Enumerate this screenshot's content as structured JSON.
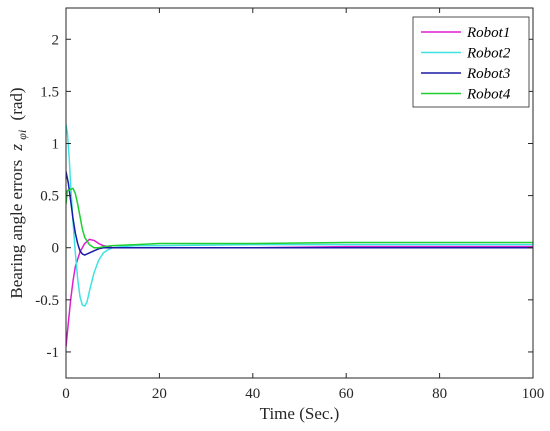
{
  "chart_data": {
    "type": "line",
    "xlabel": "Time (Sec.)",
    "ylabel": "Bearing angle errors",
    "ylabel_symbol": "z",
    "ylabel_subscript": "φi",
    "ylabel_unit": "(rad)",
    "xlim": [
      0,
      100
    ],
    "ylim": [
      -1.25,
      2.3
    ],
    "x_ticks": [
      0,
      20,
      40,
      60,
      80,
      100
    ],
    "x_tick_labels": [
      "0",
      "20",
      "40",
      "60",
      "80",
      "100"
    ],
    "y_ticks": [
      -1,
      -0.5,
      0,
      0.5,
      1,
      1.5,
      2
    ],
    "y_tick_labels": [
      "-1",
      "-0.5",
      "0",
      "0.5",
      "1",
      "1.5",
      "2"
    ],
    "grid": false,
    "legend_position": "top-right",
    "series": [
      {
        "name": "Robot1",
        "color": "#e01fd0",
        "x": [
          0,
          0.5,
          1,
          1.5,
          2,
          3,
          4,
          5,
          6,
          7,
          8,
          10,
          15,
          20,
          40,
          60,
          80,
          100
        ],
        "y": [
          -0.95,
          -0.72,
          -0.5,
          -0.32,
          -0.18,
          -0.04,
          0.04,
          0.08,
          0.07,
          0.04,
          0.02,
          0.0,
          0.0,
          0.0,
          0.0,
          0.01,
          0.01,
          0.01
        ]
      },
      {
        "name": "Robot2",
        "color": "#3fe3e3",
        "x": [
          0,
          0.3,
          0.7,
          1,
          1.5,
          2,
          2.5,
          3,
          3.5,
          4,
          4.5,
          5,
          6,
          7,
          8,
          9,
          10,
          12,
          15,
          20,
          40,
          60,
          80,
          100
        ],
        "y": [
          1.18,
          1.1,
          0.85,
          0.6,
          0.25,
          -0.05,
          -0.3,
          -0.47,
          -0.55,
          -0.56,
          -0.52,
          -0.42,
          -0.24,
          -0.12,
          -0.05,
          -0.02,
          0.0,
          0.01,
          0.02,
          0.02,
          0.03,
          0.03,
          0.03,
          0.03
        ]
      },
      {
        "name": "Robot3",
        "color": "#1a1aa6",
        "x": [
          0,
          0.5,
          1,
          1.5,
          2,
          2.5,
          3,
          3.5,
          4,
          5,
          6,
          7,
          8,
          10,
          15,
          20,
          40,
          60,
          80,
          100
        ],
        "y": [
          0.73,
          0.62,
          0.45,
          0.28,
          0.14,
          0.04,
          -0.03,
          -0.06,
          -0.07,
          -0.05,
          -0.03,
          -0.01,
          0.0,
          0.0,
          0.0,
          0.0,
          0.0,
          0.0,
          0.0,
          0.0
        ]
      },
      {
        "name": "Robot4",
        "color": "#1fcf2f",
        "x": [
          0,
          0.3,
          0.7,
          1,
          1.5,
          2,
          2.5,
          3,
          3.5,
          4,
          5,
          6,
          7,
          8,
          10,
          15,
          20,
          30,
          40,
          60,
          80,
          100
        ],
        "y": [
          0.42,
          0.55,
          0.55,
          0.56,
          0.57,
          0.52,
          0.42,
          0.3,
          0.18,
          0.1,
          0.03,
          0.0,
          0.0,
          0.01,
          0.02,
          0.03,
          0.04,
          0.04,
          0.04,
          0.05,
          0.05,
          0.05
        ]
      }
    ]
  }
}
